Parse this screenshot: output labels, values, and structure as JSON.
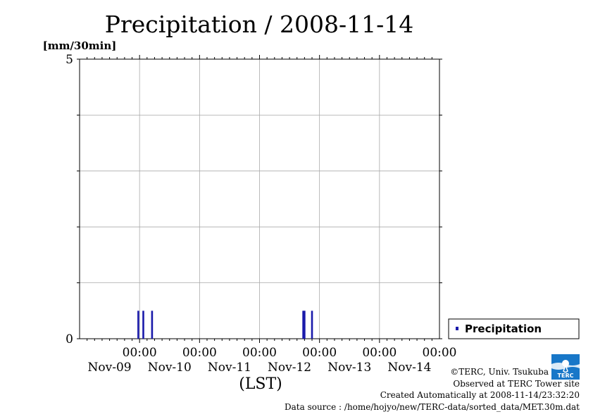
{
  "chart_data": {
    "type": "bar",
    "title": "Precipitation / 2008-11-14",
    "ylabel": "[mm/30min]",
    "xlabel": "(LST)",
    "ylim": [
      0,
      5
    ],
    "y_tick_labels": [
      "0",
      "5"
    ],
    "y_grid_step": 1,
    "x_range": [
      "2008-11-09 00:00",
      "2008-11-15 00:00"
    ],
    "x_ticks": [
      {
        "time": "00:00",
        "date": "Nov-09",
        "at": "2008-11-10 00:00"
      },
      {
        "time": "00:00",
        "date": "Nov-10",
        "at": "2008-11-11 00:00"
      },
      {
        "time": "00:00",
        "date": "Nov-11",
        "at": "2008-11-12 00:00"
      },
      {
        "time": "00:00",
        "date": "Nov-12",
        "at": "2008-11-13 00:00"
      },
      {
        "time": "00:00",
        "date": "Nov-13",
        "at": "2008-11-14 00:00"
      },
      {
        "time": "00:00",
        "date": "Nov-14",
        "at": "2008-11-15 00:00"
      }
    ],
    "grid": true,
    "legend": {
      "position": "bottom-right",
      "entries": [
        "Precipitation"
      ]
    },
    "series": [
      {
        "name": "Precipitation",
        "color": "#1a1aaa",
        "points": [
          {
            "t": "2008-11-09 23:30",
            "v": 0.5
          },
          {
            "t": "2008-11-10 01:30",
            "v": 0.5
          },
          {
            "t": "2008-11-10 05:00",
            "v": 0.5
          },
          {
            "t": "2008-11-12 17:30",
            "v": 0.5
          },
          {
            "t": "2008-11-12 18:00",
            "v": 0.5
          },
          {
            "t": "2008-11-12 21:00",
            "v": 0.5
          }
        ]
      }
    ]
  },
  "credits": {
    "copyright": "©TERC, Univ. Tsukuba",
    "observed": "Observed at TERC Tower site",
    "created": "Created Automatically at 2008-11-14/23:32:20",
    "source": "Data source : /home/hojyo/new/TERC-data/sorted_data/MET.30m.dat"
  },
  "logo": {
    "icon": "terc-logo-icon",
    "text": "TERC",
    "color": "#1877c8"
  }
}
